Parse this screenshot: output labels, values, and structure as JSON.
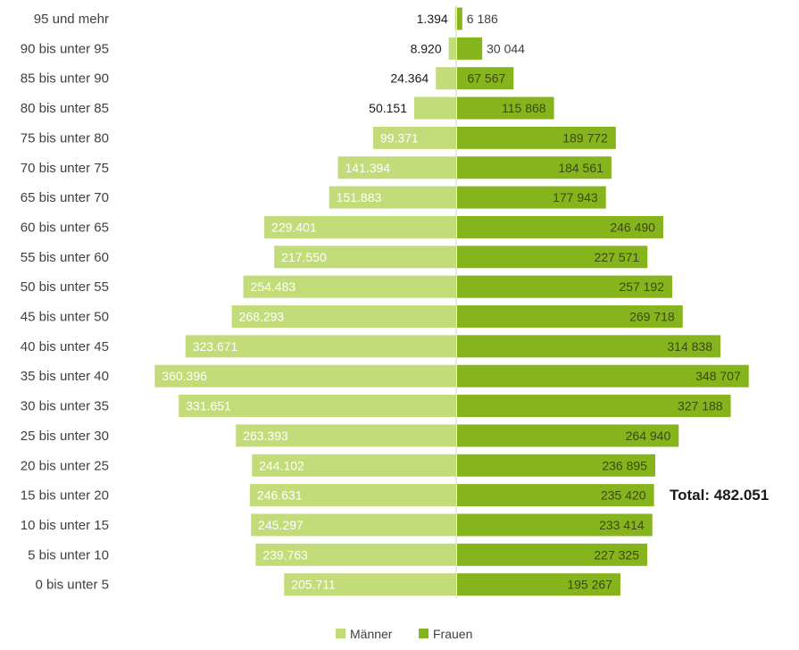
{
  "colors": {
    "maenner": "#c2dc7a",
    "frauen": "#86b41d",
    "axis": "#d0d0d0"
  },
  "chart_data": {
    "type": "bar",
    "orientation": "horizontal-population-pyramid",
    "categories": [
      "95 und mehr",
      "90 bis unter 95",
      "85 bis unter 90",
      "80 bis unter 85",
      "75 bis unter 80",
      "70 bis unter 75",
      "65 bis unter 70",
      "60 bis unter 65",
      "55 bis unter 60",
      "50 bis unter 55",
      "45 bis unter 50",
      "40 bis unter 45",
      "35 bis unter 40",
      "30 bis unter 35",
      "25 bis unter 30",
      "20 bis unter 25",
      "15 bis unter 20",
      "10 bis unter 15",
      "5 bis unter 10",
      "0 bis unter 5"
    ],
    "series": [
      {
        "name": "Männer",
        "values": [
          1394,
          8920,
          24364,
          50151,
          99371,
          141394,
          151883,
          229401,
          217550,
          254483,
          268293,
          323671,
          360396,
          331651,
          263393,
          244102,
          246631,
          245297,
          239763,
          205711
        ],
        "labels": [
          "1.394",
          "8.920",
          "24.364",
          "50.151",
          "99.371",
          "141.394",
          "151.883",
          "229.401",
          "217.550",
          "254.483",
          "268.293",
          "323.671",
          "360.396",
          "331.651",
          "263.393",
          "244.102",
          "246.631",
          "245.297",
          "239.763",
          "205.711"
        ]
      },
      {
        "name": "Frauen",
        "values": [
          6186,
          30044,
          67567,
          115868,
          189772,
          184561,
          177943,
          246490,
          227571,
          257192,
          269718,
          314838,
          348707,
          327188,
          264940,
          236895,
          235420,
          233414,
          227325,
          195267
        ],
        "labels": [
          "6 186",
          "30 044",
          "67 567",
          "115 868",
          "189 772",
          "184 561",
          "177 943",
          "246 490",
          "227 571",
          "257 192",
          "269 718",
          "314 838",
          "348 707",
          "327 188",
          "264 940",
          "236 895",
          "235 420",
          "233 414",
          "227 325",
          "195 267"
        ]
      }
    ],
    "xlim": [
      0,
      370000
    ],
    "grid": false,
    "legend": "bottom-center",
    "annotation": "Total: 482.051"
  }
}
